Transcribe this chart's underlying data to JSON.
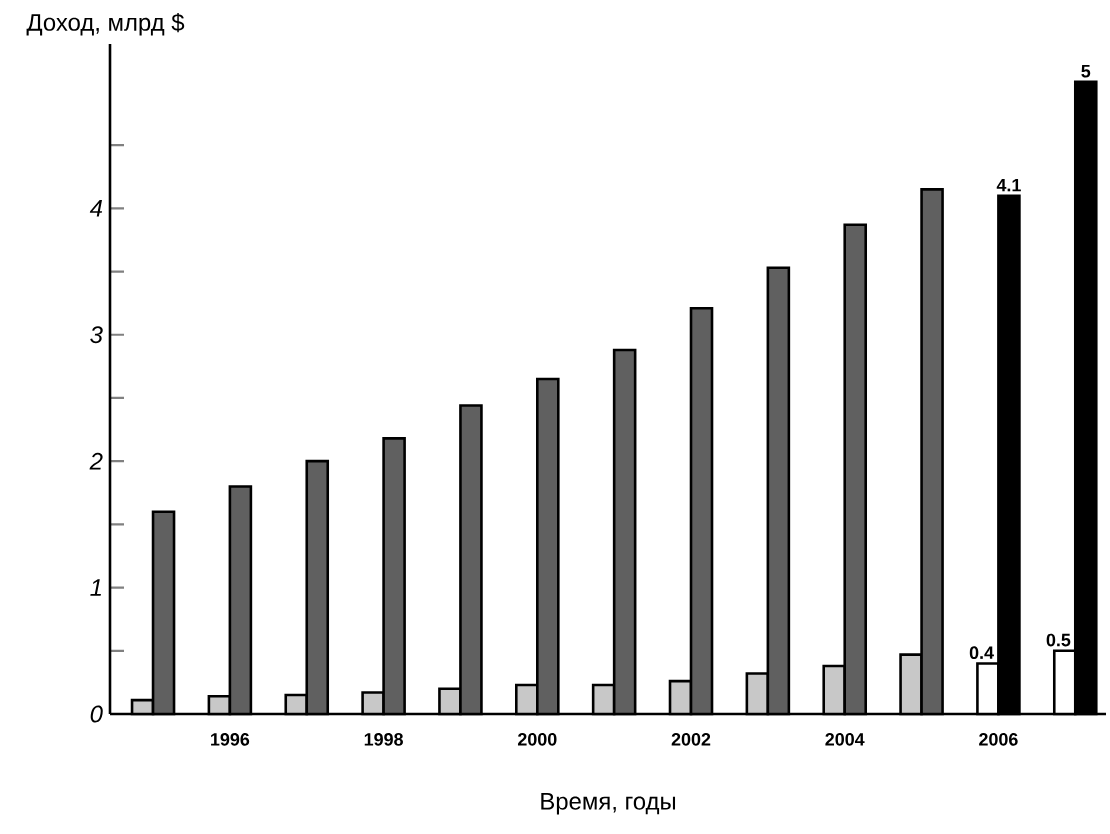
{
  "chart_data": {
    "type": "bar",
    "ylabel": "Доход, млрд $",
    "xlabel": "Время,  годы",
    "categories": [
      null,
      "1996",
      null,
      "1998",
      null,
      "2000",
      null,
      "2002",
      null,
      "2004",
      null,
      "2006",
      null
    ],
    "series": [
      {
        "colors": [
          "#c8c8c8",
          "#c8c8c8",
          "#c8c8c8",
          "#c8c8c8",
          "#c8c8c8",
          "#c8c8c8",
          "#c8c8c8",
          "#c8c8c8",
          "#c8c8c8",
          "#c8c8c8",
          "#c8c8c8",
          "#ffffff",
          "#ffffff"
        ],
        "values": [
          0.11,
          0.14,
          0.15,
          0.17,
          0.2,
          0.23,
          0.23,
          0.26,
          0.32,
          0.38,
          0.47,
          0.4,
          0.5
        ],
        "value_labels": [
          null,
          null,
          null,
          null,
          null,
          null,
          null,
          null,
          null,
          null,
          null,
          "0.4",
          "0.5"
        ]
      },
      {
        "colors": [
          "#606060",
          "#606060",
          "#606060",
          "#606060",
          "#606060",
          "#606060",
          "#606060",
          "#606060",
          "#606060",
          "#606060",
          "#606060",
          "#000000",
          "#000000"
        ],
        "values": [
          1.6,
          1.8,
          2.0,
          2.18,
          2.44,
          2.65,
          2.88,
          3.21,
          3.53,
          3.87,
          4.15,
          4.1,
          5
        ],
        "value_labels": [
          null,
          null,
          null,
          null,
          null,
          null,
          null,
          null,
          null,
          null,
          null,
          "4.1",
          "5"
        ]
      }
    ],
    "ylim": [
      0,
      5.3
    ],
    "yticks": [
      0,
      {
        "value": 0.5,
        "label": null
      },
      1,
      {
        "value": 1.5,
        "label": null
      },
      2,
      {
        "value": 2.5,
        "label": null
      },
      3,
      {
        "value": 3.5,
        "label": null
      },
      4,
      {
        "value": 4.5,
        "label": null
      }
    ]
  }
}
